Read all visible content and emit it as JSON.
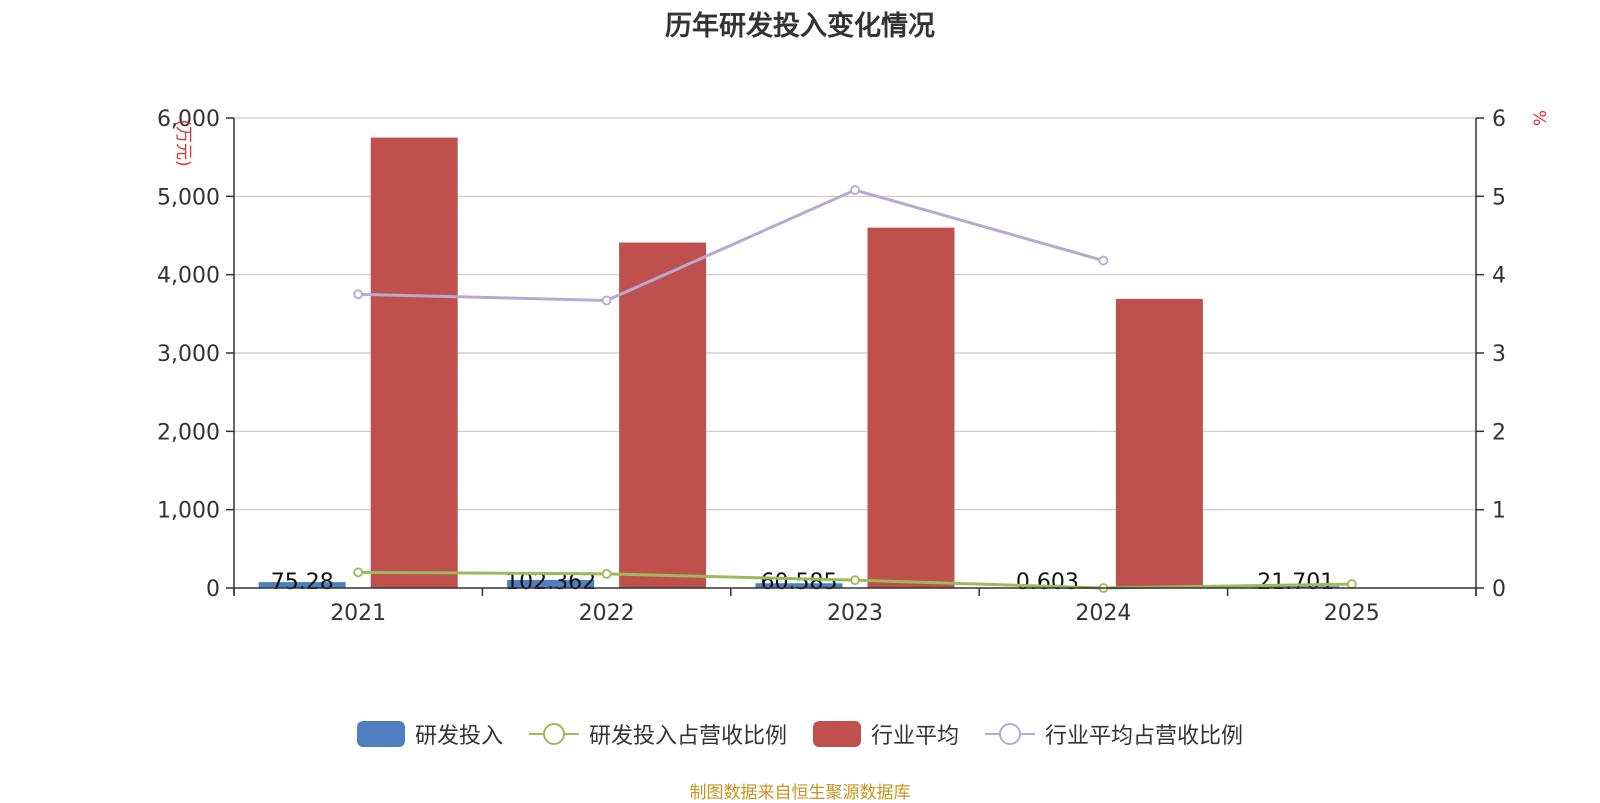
{
  "chart_data": {
    "type": "bar",
    "title": "历年研发投入变化情况",
    "categories": [
      "2021",
      "2022",
      "2023",
      "2024",
      "2025"
    ],
    "y_left": {
      "label": "(万元)",
      "min": 0,
      "max": 6000,
      "ticks": [
        "0",
        "1,000",
        "2,000",
        "3,000",
        "4,000",
        "5,000",
        "6,000"
      ],
      "tick_values": [
        0,
        1000,
        2000,
        3000,
        4000,
        5000,
        6000
      ]
    },
    "y_right": {
      "label": "%",
      "min": 0,
      "max": 6,
      "ticks": [
        "0",
        "1",
        "2",
        "3",
        "4",
        "5",
        "6"
      ],
      "tick_values": [
        0,
        1,
        2,
        3,
        4,
        5,
        6
      ]
    },
    "grid": true,
    "legend_position": "bottom",
    "series": [
      {
        "name": "研发投入",
        "type": "bar",
        "axis": "left",
        "color": "#4f7fc0",
        "values": [
          75.28,
          102.362,
          60.585,
          0.603,
          21.701
        ],
        "labels": [
          "75.28",
          "102.362",
          "60.585",
          "0.603",
          "21.701"
        ]
      },
      {
        "name": "研发投入占营收比例",
        "type": "line",
        "axis": "right",
        "color": "#9bbb59",
        "values": [
          0.2,
          0.18,
          0.1,
          0.0,
          0.05
        ]
      },
      {
        "name": "行业平均",
        "type": "bar",
        "axis": "left",
        "color": "#c0504d",
        "values": [
          5750,
          4410,
          4600,
          3690,
          null
        ]
      },
      {
        "name": "行业平均占营收比例",
        "type": "line",
        "axis": "right",
        "color": "#b7a9d0",
        "values": [
          3.75,
          3.67,
          5.08,
          4.18,
          null
        ]
      }
    ]
  },
  "source_note": "制图数据来自恒生聚源数据库"
}
